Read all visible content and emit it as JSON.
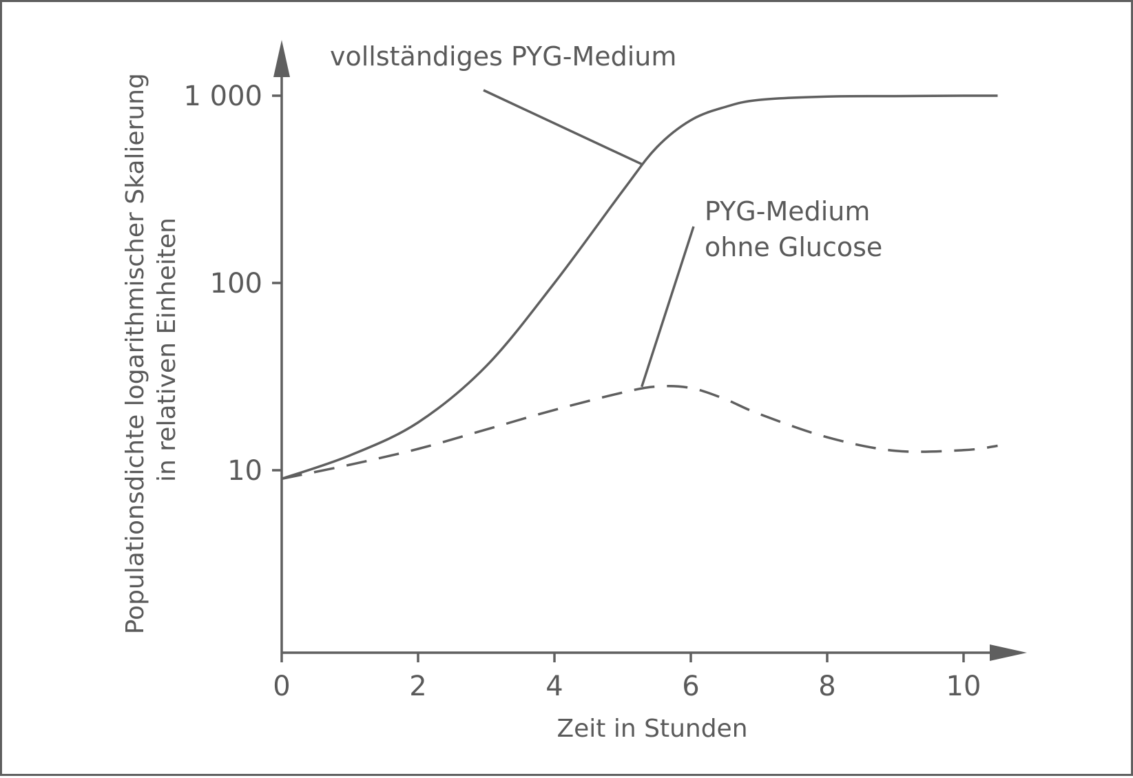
{
  "chart_data": {
    "type": "line",
    "title": "",
    "xlabel": "Zeit in Stunden",
    "ylabel_lines": [
      "Populationsdichte logarithmischer Skalierung",
      "in relativen Einheiten"
    ],
    "y_scale": "log",
    "xlim": [
      0,
      10.8
    ],
    "ylim": [
      2,
      2000
    ],
    "x_ticks": [
      0,
      2,
      4,
      6,
      8,
      10
    ],
    "x_tick_labels": [
      "0",
      "2",
      "4",
      "6",
      "8",
      "10"
    ],
    "y_ticks": [
      10,
      100,
      1000
    ],
    "y_tick_labels": [
      "10",
      "100",
      "1 000"
    ],
    "grid": false,
    "color": "#5f5f5f",
    "series": [
      {
        "name": "vollständiges PYG-Medium",
        "style": "solid",
        "x": [
          0,
          1,
          2,
          3,
          4,
          5,
          5.5,
          6,
          6.5,
          7,
          8,
          9,
          10,
          10.5
        ],
        "y": [
          9,
          12,
          18,
          36,
          100,
          310,
          530,
          740,
          870,
          950,
          990,
          995,
          1000,
          1000
        ]
      },
      {
        "name": "PYG-Medium ohne Glucose",
        "style": "dashed",
        "x": [
          0,
          1,
          2,
          3,
          4,
          5,
          5.5,
          6,
          6.5,
          7,
          8,
          9,
          10,
          10.5
        ],
        "y": [
          9,
          10.7,
          13,
          16.5,
          21,
          26,
          28,
          27.5,
          24,
          20,
          15,
          12.7,
          12.8,
          13.5
        ]
      }
    ],
    "annotations": [
      {
        "text": "vollständiges PYG-Medium",
        "series": 0,
        "anchor_x": 5.3
      },
      {
        "text_lines": [
          "PYG-Medium",
          "ohne Glucose"
        ],
        "series": 1,
        "anchor_x": 5.25
      }
    ]
  }
}
